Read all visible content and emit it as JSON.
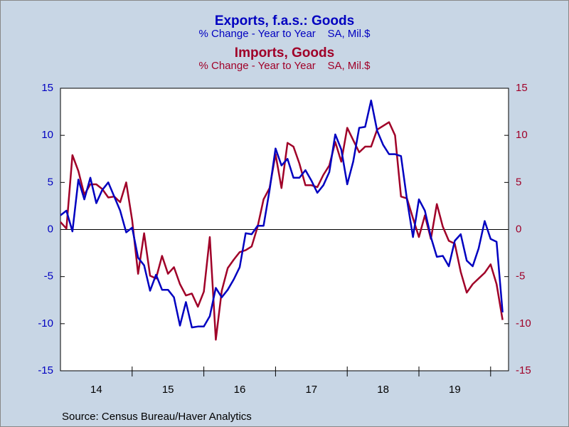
{
  "chart_data": {
    "type": "line",
    "titles": [
      {
        "title": "Exports, f.a.s.: Goods",
        "subtitle": "% Change - Year to Year    SA, Mil.$",
        "color": "#0000c0"
      },
      {
        "title": "Imports, Goods",
        "subtitle": "% Change - Year to Year    SA, Mil.$",
        "color": "#a00028"
      }
    ],
    "source": "Source:  Census Bureau/Haver Analytics",
    "x": [
      2014,
      2014.083,
      2014.167,
      2014.25,
      2014.333,
      2014.417,
      2014.5,
      2014.583,
      2014.667,
      2014.75,
      2014.833,
      2014.917,
      2015,
      2015.083,
      2015.167,
      2015.25,
      2015.333,
      2015.417,
      2015.5,
      2015.583,
      2015.667,
      2015.75,
      2015.833,
      2015.917,
      2016,
      2016.083,
      2016.167,
      2016.25,
      2016.333,
      2016.417,
      2016.5,
      2016.583,
      2016.667,
      2016.75,
      2016.833,
      2016.917,
      2017,
      2017.083,
      2017.167,
      2017.25,
      2017.333,
      2017.417,
      2017.5,
      2017.583,
      2017.667,
      2017.75,
      2017.833,
      2017.917,
      2018,
      2018.083,
      2018.167,
      2018.25,
      2018.333,
      2018.417,
      2018.5,
      2018.583,
      2018.667,
      2018.75,
      2018.833,
      2018.917,
      2019,
      2019.083,
      2019.167,
      2019.25,
      2019.333,
      2019.417,
      2019.5,
      2019.583,
      2019.667,
      2019.75,
      2019.833,
      2019.917,
      2020,
      2020.083,
      2020.167
    ],
    "series": [
      {
        "name": "Exports, f.a.s.: Goods",
        "color": "#0000c0",
        "axis": "y",
        "values": [
          1.5,
          2.0,
          -0.2,
          5.3,
          3.2,
          5.5,
          2.8,
          4.2,
          5.0,
          3.5,
          2.0,
          -0.3,
          0.2,
          -3.0,
          -3.8,
          -6.5,
          -4.8,
          -6.4,
          -6.4,
          -7.2,
          -10.2,
          -7.7,
          -10.4,
          -10.3,
          -10.3,
          -9.2,
          -6.2,
          -7.2,
          -6.4,
          -5.3,
          -4.0,
          -0.4,
          -0.5,
          0.4,
          0.4,
          4.2,
          8.6,
          6.8,
          7.5,
          5.5,
          5.5,
          6.3,
          5.2,
          3.9,
          4.7,
          6.1,
          10.1,
          8.5,
          4.8,
          7.2,
          10.8,
          10.9,
          13.7,
          10.5,
          9.0,
          8.0,
          8.0,
          7.8,
          3.2,
          -0.8,
          3.2,
          2.0,
          -0.8,
          -2.9,
          -2.8,
          -3.9,
          -1.2,
          -0.5,
          -3.3,
          -3.9,
          -2.0,
          0.9,
          -1.0,
          -1.3,
          -8.8
        ]
      },
      {
        "name": "Imports, Goods",
        "color": "#a00028",
        "axis": "y2",
        "values": [
          0.8,
          0.1,
          7.9,
          6.2,
          3.7,
          4.8,
          4.8,
          4.3,
          3.4,
          3.5,
          2.9,
          5.0,
          1.0,
          -4.7,
          -0.4,
          -4.9,
          -5.2,
          -2.8,
          -4.7,
          -4.0,
          -5.8,
          -7.0,
          -6.8,
          -8.2,
          -6.6,
          -0.8,
          -11.7,
          -6.5,
          -4.1,
          -3.2,
          -2.4,
          -2.2,
          -1.8,
          0.3,
          3.2,
          4.4,
          8.0,
          4.4,
          9.2,
          8.8,
          7.0,
          4.7,
          4.7,
          4.5,
          5.8,
          6.8,
          9.3,
          7.2,
          10.8,
          9.5,
          8.2,
          8.8,
          8.8,
          10.6,
          11.0,
          11.4,
          10.0,
          3.5,
          3.3,
          1.2,
          -0.8,
          1.5,
          -1.0,
          2.7,
          0.3,
          -1.2,
          -1.5,
          -4.5,
          -6.7,
          -5.8,
          -5.2,
          -4.6,
          -3.7,
          -5.8,
          -9.6
        ]
      }
    ],
    "xlim": [
      2014,
      2020.25
    ],
    "xticks": [
      {
        "value": 2014.5,
        "label": "14"
      },
      {
        "value": 2015.5,
        "label": "15"
      },
      {
        "value": 2016.5,
        "label": "16"
      },
      {
        "value": 2017.5,
        "label": "17"
      },
      {
        "value": 2018.5,
        "label": "18"
      },
      {
        "value": 2019.5,
        "label": "19"
      }
    ],
    "xticks_minor": [
      2015,
      2016,
      2017,
      2018,
      2019,
      2020
    ],
    "ylim": [
      -15,
      15
    ],
    "yticks": [
      -15,
      -10,
      -5,
      0,
      5,
      10,
      15
    ],
    "y2lim": [
      -15,
      15
    ],
    "y2ticks": [
      -15,
      -10,
      -5,
      0,
      5,
      10,
      15
    ],
    "zero_line": true
  }
}
